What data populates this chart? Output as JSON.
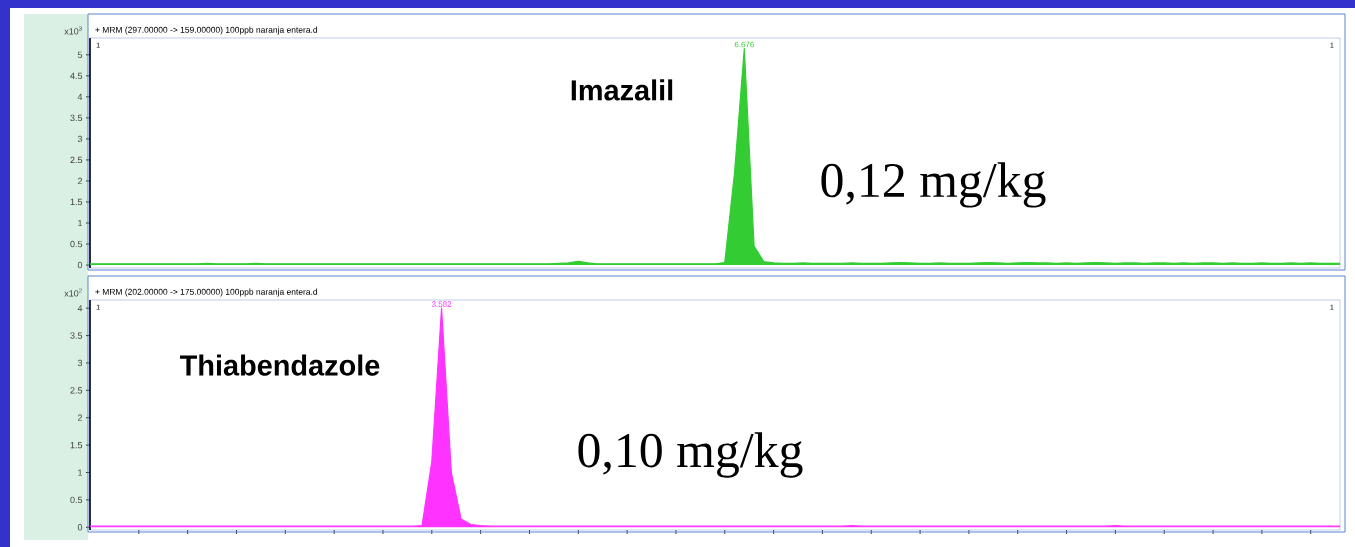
{
  "chart_data": [
    {
      "type": "area",
      "title": "+ MRM (297.00000 -> 159.00000) 100ppb naranja entera.d",
      "ylabel": "x10$^{3}$",
      "categories": [
        null,
        null,
        null,
        null,
        null,
        null,
        null,
        null,
        null,
        null,
        null,
        null,
        null,
        null,
        null,
        null,
        null,
        null,
        null,
        null,
        null,
        null,
        null,
        null,
        null,
        null,
        null,
        null,
        null,
        null,
        null,
        null,
        null,
        null,
        null,
        null,
        null,
        null,
        null,
        null,
        null,
        null,
        null,
        null,
        null,
        null,
        null,
        null,
        null,
        null,
        null,
        null,
        null,
        null,
        null,
        null,
        null,
        null,
        null,
        null,
        null,
        null,
        null,
        null,
        null,
        null,
        null,
        null,
        null,
        null,
        null,
        null,
        null,
        null,
        null,
        null,
        null,
        null,
        null,
        null,
        null,
        null,
        null,
        null,
        null,
        null,
        null,
        null,
        null,
        null,
        null,
        null,
        null,
        null,
        null,
        null,
        null,
        null,
        null,
        null,
        null,
        null,
        null,
        null,
        null,
        null,
        null,
        null,
        null,
        null,
        null,
        null,
        null,
        null,
        null,
        null,
        null,
        null,
        null,
        null,
        null,
        null,
        null,
        null,
        null,
        null,
        null,
        null,
        null
      ],
      "series": [
        {
          "color": "#33cc33",
          "values": [
            0.03,
            0.03,
            0.03,
            0.03,
            0.03,
            0.03,
            0.03,
            0.03,
            0.03,
            0.03,
            0.03,
            0.03,
            0.04,
            0.03,
            0.03,
            0.03,
            0.03,
            0.04,
            0.03,
            0.03,
            0.03,
            0.03,
            0.03,
            0.03,
            0.03,
            0.03,
            0.03,
            0.03,
            0.03,
            0.03,
            0.03,
            0.03,
            0.03,
            0.03,
            0.03,
            0.03,
            0.03,
            0.03,
            0.03,
            0.03,
            0.03,
            0.03,
            0.03,
            0.03,
            0.03,
            0.03,
            0.03,
            0.03,
            0.04,
            0.05,
            0.09,
            0.05,
            0.03,
            0.03,
            0.03,
            0.03,
            0.03,
            0.03,
            0.03,
            0.03,
            0.03,
            0.03,
            0.03,
            0.03,
            0.03,
            0.06,
            2.2,
            5.15,
            0.45,
            0.08,
            0.05,
            0.04,
            0.04,
            0.05,
            0.04,
            0.04,
            0.04,
            0.04,
            0.05,
            0.04,
            0.04,
            0.04,
            0.05,
            0.06,
            0.05,
            0.04,
            0.04,
            0.05,
            0.04,
            0.04,
            0.04,
            0.05,
            0.06,
            0.05,
            0.04,
            0.05,
            0.06,
            0.05,
            0.05,
            0.04,
            0.05,
            0.04,
            0.05,
            0.06,
            0.05,
            0.04,
            0.05,
            0.05,
            0.04,
            0.05,
            0.05,
            0.04,
            0.05,
            0.04,
            0.05,
            0.05,
            0.04,
            0.05,
            0.04,
            0.04,
            0.05,
            0.04,
            0.04,
            0.05,
            0.04,
            0.05,
            0.04,
            0.04,
            0.04
          ]
        }
      ],
      "ylim": [
        -0.07,
        5.4
      ],
      "yticks": [
        0,
        0.5,
        1,
        1.5,
        2,
        2.5,
        3,
        3.5,
        4,
        4.5,
        5
      ],
      "tick_labels": "y",
      "annotations": [
        "1",
        "1",
        "Imazalil",
        "0,12 mg/kg",
        "6.676"
      ]
    },
    {
      "type": "area",
      "title": "+ MRM (202.00000 -> 175.00000) 100ppb naranja entera.d",
      "ylabel": "x10$^{2}$",
      "categories": [
        null,
        null,
        null,
        null,
        null,
        null,
        null,
        null,
        null,
        null,
        null,
        null,
        null,
        null,
        null,
        null,
        null,
        null,
        null,
        null,
        null,
        null,
        null,
        null,
        null,
        null,
        null,
        null,
        null,
        null,
        null,
        null,
        null,
        null,
        null,
        null,
        null,
        null,
        null,
        null,
        null,
        null,
        null,
        null,
        null,
        null,
        null,
        null,
        null,
        null,
        null,
        null,
        null,
        null,
        null,
        null,
        null,
        null,
        null,
        null,
        null,
        null,
        null,
        null,
        null,
        null,
        null,
        null,
        null,
        null,
        null,
        null,
        null,
        null,
        null,
        null,
        null,
        null,
        null,
        null,
        null,
        null,
        null,
        null,
        null,
        null,
        null,
        null,
        null,
        null,
        null,
        null,
        null,
        null,
        null,
        null,
        null,
        null,
        null,
        null,
        null,
        null,
        null,
        null,
        null,
        null,
        null,
        null,
        null,
        null,
        null,
        null,
        null,
        null,
        null,
        null,
        null,
        null,
        null,
        null,
        null,
        null,
        null,
        null,
        null,
        null,
        null,
        null,
        null
      ],
      "series": [
        {
          "color": "#ff33ff",
          "values": [
            0.02,
            0.02,
            0.02,
            0.02,
            0.02,
            0.02,
            0.02,
            0.02,
            0.02,
            0.02,
            0.02,
            0.02,
            0.02,
            0.02,
            0.02,
            0.02,
            0.02,
            0.02,
            0.02,
            0.02,
            0.02,
            0.02,
            0.02,
            0.02,
            0.02,
            0.02,
            0.02,
            0.02,
            0.02,
            0.02,
            0.02,
            0.02,
            0.02,
            0.02,
            0.03,
            1.2,
            4.0,
            1.0,
            0.15,
            0.05,
            0.03,
            0.02,
            0.02,
            0.02,
            0.02,
            0.02,
            0.02,
            0.02,
            0.02,
            0.02,
            0.02,
            0.02,
            0.02,
            0.02,
            0.02,
            0.02,
            0.02,
            0.02,
            0.02,
            0.02,
            0.02,
            0.02,
            0.02,
            0.02,
            0.02,
            0.02,
            0.02,
            0.02,
            0.02,
            0.02,
            0.02,
            0.02,
            0.02,
            0.02,
            0.02,
            0.02,
            0.02,
            0.02,
            0.03,
            0.02,
            0.02,
            0.02,
            0.02,
            0.02,
            0.02,
            0.02,
            0.02,
            0.02,
            0.02,
            0.02,
            0.02,
            0.02,
            0.02,
            0.02,
            0.02,
            0.02,
            0.02,
            0.02,
            0.02,
            0.02,
            0.02,
            0.02,
            0.02,
            0.02,
            0.02,
            0.03,
            0.02,
            0.02,
            0.02,
            0.02,
            0.02,
            0.02,
            0.02,
            0.02,
            0.02,
            0.02,
            0.02,
            0.02,
            0.02,
            0.02,
            0.02,
            0.02,
            0.02,
            0.02,
            0.02,
            0.02,
            0.02,
            0.02,
            0.02
          ]
        }
      ],
      "ylim": [
        -0.05,
        4.15
      ],
      "yticks": [
        0,
        0.5,
        1,
        1.5,
        2,
        2.5,
        3,
        3.5,
        4
      ],
      "tick_labels": "y",
      "annotations": [
        "1",
        "1",
        "Thiabendazole",
        "0,10 mg/kg",
        "3.582"
      ]
    }
  ]
}
